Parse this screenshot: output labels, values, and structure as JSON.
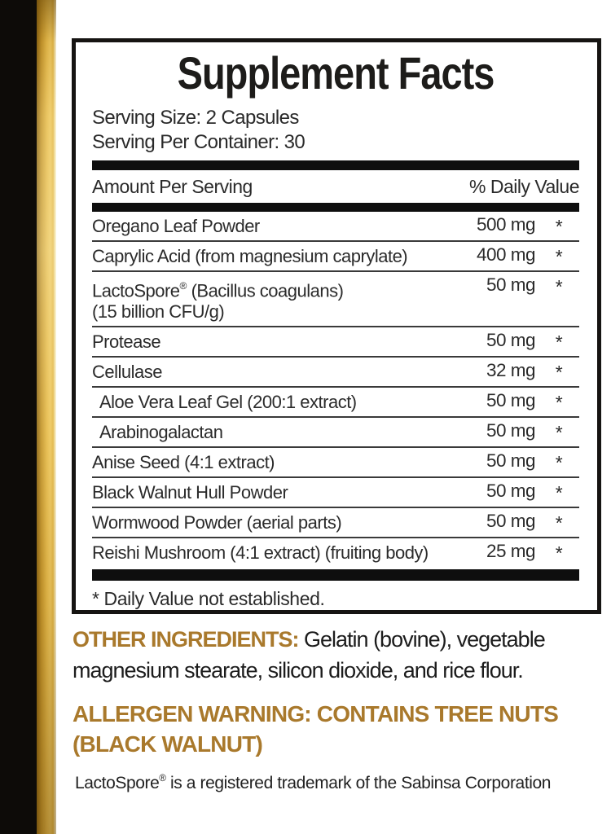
{
  "colors": {
    "accent_gold_text": "#a9792c",
    "brand_bar_black": "#0d0b08",
    "brand_bar_gold": "#e5b94a",
    "panel_border": "#161412"
  },
  "supplement_panel": {
    "title": "Supplement Facts",
    "serving_size": "Serving Size: 2 Capsules",
    "servings_per_container": "Serving Per Container: 30",
    "column_headers": {
      "left": "Amount Per Serving",
      "right": "% Daily Value"
    },
    "rows": [
      {
        "name": "Oregano Leaf Powder",
        "amount": "500 mg",
        "daily_value": "*"
      },
      {
        "name": "Caprylic Acid (from magnesium caprylate)",
        "amount": "400 mg",
        "daily_value": "*"
      },
      {
        "name_pre": "LactoSpore",
        "reg_mark": "®",
        "name_rest": " (Bacillus coagulans)",
        "name_line2": "(15 billion CFU/g)",
        "amount": "50 mg",
        "daily_value": "*"
      },
      {
        "name": "Protease",
        "amount": "50 mg",
        "daily_value": "*"
      },
      {
        "name": "Cellulase",
        "amount": "32 mg",
        "daily_value": "*"
      },
      {
        "name": "Aloe Vera Leaf Gel (200:1 extract)",
        "amount": "50 mg",
        "daily_value": "*"
      },
      {
        "name": "Arabinogalactan",
        "amount": "50 mg",
        "daily_value": "*"
      },
      {
        "name": "Anise Seed (4:1 extract)",
        "amount": "50 mg",
        "daily_value": "*"
      },
      {
        "name": "Black Walnut Hull Powder",
        "amount": "50 mg",
        "daily_value": "*"
      },
      {
        "name": "Wormwood Powder (aerial parts)",
        "amount": "50 mg",
        "daily_value": "*"
      },
      {
        "name": "Reishi Mushroom (4:1 extract) (fruiting body)",
        "amount": "25 mg",
        "daily_value": "*"
      }
    ],
    "footnote": "* Daily Value not established."
  },
  "other_ingredients": {
    "label": "OTHER INGREDIENTS:",
    "line1": " Gelatin (bovine), vegetable",
    "line2": "magnesium stearate, silicon dioxide, and rice flour."
  },
  "allergen_warning": {
    "line1": "ALLERGEN WARNING: CONTAINS TREE NUTS",
    "line2": "(BLACK WALNUT)"
  },
  "trademark_note": {
    "pre": "LactoSpore",
    "reg_mark": "®",
    "rest": " is a registered trademark of the Sabinsa Corporation"
  }
}
